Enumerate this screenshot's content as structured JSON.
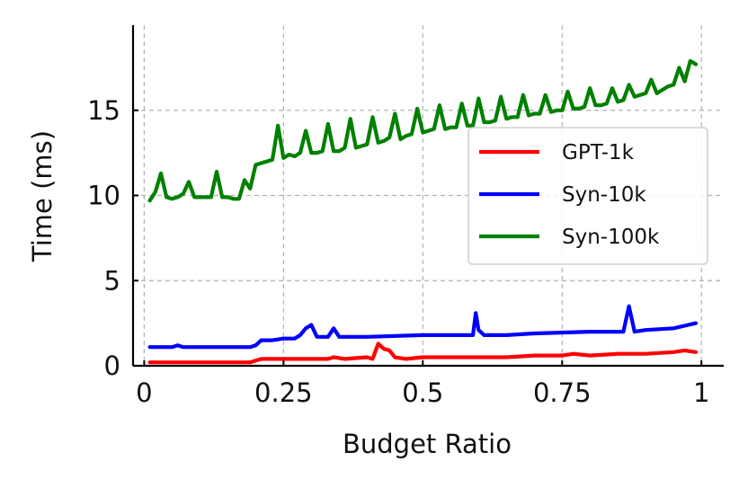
{
  "chart_data": {
    "type": "line",
    "title": "",
    "xlabel": "Budget Ratio",
    "ylabel": "Time (ms)",
    "xlim": [
      -0.02,
      1.04
    ],
    "ylim": [
      0,
      20
    ],
    "xticks": [
      0,
      0.25,
      0.5,
      0.75,
      1
    ],
    "xtick_labels": [
      "0",
      "0.25",
      "0.5",
      "0.75",
      "1"
    ],
    "yticks": [
      0,
      5,
      10,
      15
    ],
    "ytick_labels": [
      "0",
      "5",
      "10",
      "15"
    ],
    "grid": true,
    "legend_position": "center-right",
    "series": [
      {
        "name": "GPT-1k",
        "color": "#ff0000",
        "x": [
          0.01,
          0.05,
          0.1,
          0.15,
          0.19,
          0.2,
          0.21,
          0.25,
          0.3,
          0.33,
          0.34,
          0.36,
          0.4,
          0.41,
          0.42,
          0.43,
          0.44,
          0.45,
          0.47,
          0.5,
          0.55,
          0.6,
          0.65,
          0.7,
          0.75,
          0.77,
          0.8,
          0.85,
          0.9,
          0.95,
          0.97,
          0.99
        ],
        "y": [
          0.2,
          0.2,
          0.2,
          0.2,
          0.2,
          0.3,
          0.4,
          0.4,
          0.4,
          0.4,
          0.5,
          0.4,
          0.5,
          0.4,
          1.3,
          1.0,
          0.9,
          0.5,
          0.4,
          0.5,
          0.5,
          0.5,
          0.5,
          0.6,
          0.6,
          0.7,
          0.6,
          0.7,
          0.7,
          0.8,
          0.9,
          0.8
        ]
      },
      {
        "name": "Syn-10k",
        "color": "#0000ff",
        "x": [
          0.01,
          0.05,
          0.06,
          0.07,
          0.1,
          0.15,
          0.19,
          0.2,
          0.21,
          0.23,
          0.25,
          0.27,
          0.28,
          0.29,
          0.3,
          0.31,
          0.33,
          0.34,
          0.35,
          0.37,
          0.4,
          0.5,
          0.59,
          0.595,
          0.6,
          0.61,
          0.65,
          0.7,
          0.8,
          0.86,
          0.87,
          0.88,
          0.9,
          0.95,
          0.99
        ],
        "y": [
          1.1,
          1.1,
          1.2,
          1.1,
          1.1,
          1.1,
          1.1,
          1.2,
          1.5,
          1.5,
          1.6,
          1.6,
          1.8,
          2.2,
          2.4,
          1.7,
          1.7,
          2.2,
          1.7,
          1.7,
          1.7,
          1.8,
          1.8,
          3.1,
          2.1,
          1.8,
          1.8,
          1.9,
          2.0,
          2.0,
          3.5,
          2.0,
          2.1,
          2.2,
          2.5
        ]
      },
      {
        "name": "Syn-100k",
        "color": "#008000",
        "x": [
          0.01,
          0.02,
          0.03,
          0.04,
          0.05,
          0.06,
          0.07,
          0.08,
          0.09,
          0.1,
          0.11,
          0.12,
          0.13,
          0.14,
          0.15,
          0.16,
          0.17,
          0.18,
          0.19,
          0.2,
          0.21,
          0.22,
          0.23,
          0.24,
          0.25,
          0.26,
          0.27,
          0.28,
          0.29,
          0.3,
          0.31,
          0.32,
          0.33,
          0.34,
          0.35,
          0.36,
          0.37,
          0.38,
          0.39,
          0.4,
          0.41,
          0.42,
          0.43,
          0.44,
          0.45,
          0.46,
          0.47,
          0.48,
          0.49,
          0.5,
          0.51,
          0.52,
          0.53,
          0.54,
          0.55,
          0.56,
          0.57,
          0.58,
          0.59,
          0.6,
          0.61,
          0.62,
          0.63,
          0.64,
          0.65,
          0.66,
          0.67,
          0.68,
          0.69,
          0.7,
          0.71,
          0.72,
          0.73,
          0.74,
          0.75,
          0.76,
          0.77,
          0.78,
          0.79,
          0.8,
          0.81,
          0.82,
          0.83,
          0.84,
          0.85,
          0.86,
          0.87,
          0.88,
          0.89,
          0.9,
          0.91,
          0.92,
          0.93,
          0.94,
          0.95,
          0.96,
          0.97,
          0.98,
          0.99
        ],
        "y": [
          9.7,
          10.2,
          11.3,
          9.9,
          9.8,
          9.9,
          10.1,
          10.8,
          9.9,
          9.9,
          9.9,
          9.9,
          11.4,
          9.9,
          9.9,
          9.8,
          9.8,
          10.9,
          10.4,
          11.8,
          11.9,
          12.0,
          12.1,
          14.1,
          12.2,
          12.4,
          12.3,
          12.5,
          13.8,
          12.5,
          12.5,
          12.6,
          14.2,
          12.6,
          12.6,
          12.8,
          14.5,
          12.8,
          12.9,
          13.0,
          14.6,
          13.1,
          13.2,
          13.4,
          14.8,
          13.3,
          13.5,
          13.6,
          15.1,
          13.7,
          13.8,
          13.9,
          15.3,
          13.9,
          14.0,
          14.0,
          15.4,
          14.1,
          14.1,
          15.7,
          14.3,
          14.3,
          14.4,
          15.8,
          14.5,
          14.6,
          14.6,
          15.9,
          14.7,
          14.8,
          14.8,
          15.9,
          14.9,
          15.0,
          15.0,
          16.1,
          15.1,
          15.1,
          15.2,
          16.3,
          15.3,
          15.3,
          15.4,
          16.3,
          15.5,
          15.6,
          16.5,
          15.8,
          15.9,
          16.0,
          16.8,
          16.0,
          16.2,
          16.4,
          16.5,
          17.5,
          16.7,
          17.9,
          17.7
        ]
      }
    ]
  }
}
